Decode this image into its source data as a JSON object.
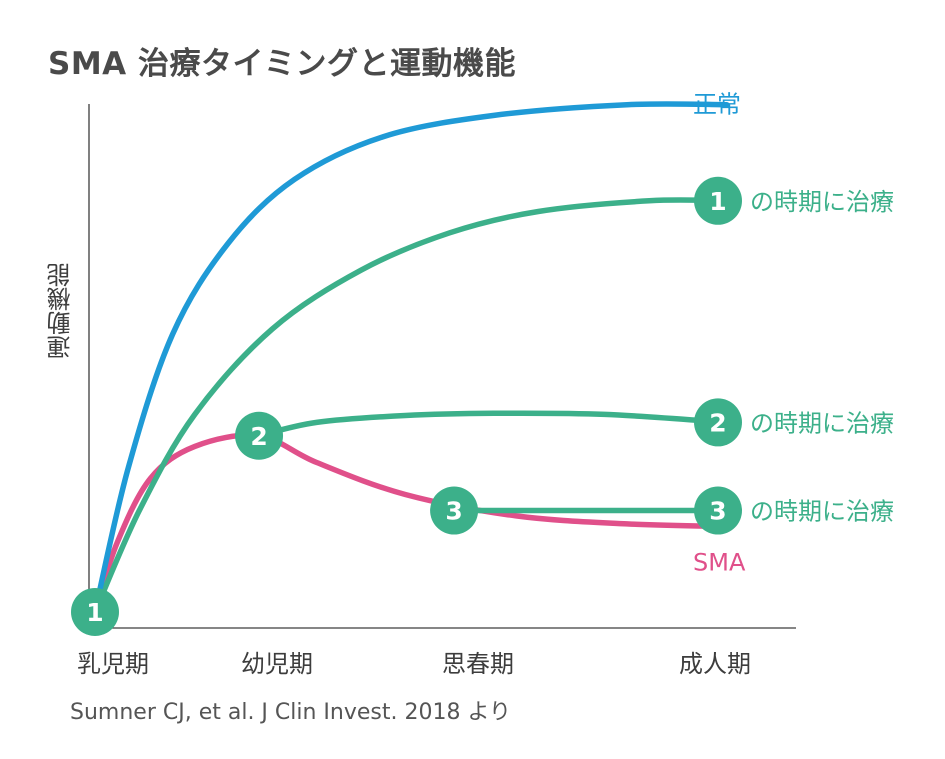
{
  "title": "SMA 治療タイミングと運動機能",
  "ylabel": "運動機能",
  "source": "Sumner CJ, et al. J Clin Invest. 2018 より",
  "colors": {
    "normal": "#1f9ad6",
    "treated": "#3cb08a",
    "sma": "#e0508a",
    "axis": "#3d3d3d",
    "badge_text": "#ffffff"
  },
  "chart_data": {
    "type": "line",
    "title": "SMA 治療タイミングと運動機能",
    "xlabel": "",
    "ylabel": "運動機能",
    "categories": [
      "乳児期",
      "幼児期",
      "思春期",
      "成人期"
    ],
    "xlim": [
      0,
      3.3
    ],
    "ylim": [
      0,
      100
    ],
    "grid": false,
    "markers": [
      {
        "label": "1",
        "x": 0.0,
        "y": 3
      },
      {
        "label": "2",
        "x": 0.74,
        "y": 36
      },
      {
        "label": "3",
        "x": 1.62,
        "y": 22
      }
    ],
    "series": [
      {
        "name": "正常",
        "color_key": "normal",
        "points": [
          [
            0.0,
            3
          ],
          [
            0.15,
            30
          ],
          [
            0.35,
            55
          ],
          [
            0.6,
            72
          ],
          [
            0.9,
            84
          ],
          [
            1.3,
            92
          ],
          [
            1.8,
            96
          ],
          [
            2.4,
            98
          ],
          [
            2.85,
            98
          ]
        ]
      },
      {
        "name": "の時期に治療",
        "marker": "1",
        "color_key": "treated",
        "points": [
          [
            0.0,
            3
          ],
          [
            0.2,
            22
          ],
          [
            0.45,
            40
          ],
          [
            0.8,
            56
          ],
          [
            1.2,
            67
          ],
          [
            1.6,
            74
          ],
          [
            2.0,
            78
          ],
          [
            2.5,
            80
          ],
          [
            2.85,
            80
          ]
        ]
      },
      {
        "name": "の時期に治療",
        "marker": "2",
        "color_key": "treated",
        "points": [
          [
            0.74,
            36
          ],
          [
            1.0,
            38.5
          ],
          [
            1.4,
            39.8
          ],
          [
            1.8,
            40.2
          ],
          [
            2.3,
            40
          ],
          [
            2.85,
            38.5
          ]
        ]
      },
      {
        "name": "の時期に治療",
        "marker": "3",
        "color_key": "treated",
        "points": [
          [
            1.62,
            22
          ],
          [
            2.0,
            22
          ],
          [
            2.5,
            22
          ],
          [
            2.85,
            22
          ]
        ]
      },
      {
        "name": "SMA",
        "color_key": "sma",
        "points": [
          [
            0.0,
            3
          ],
          [
            0.1,
            16
          ],
          [
            0.25,
            28
          ],
          [
            0.45,
            34
          ],
          [
            0.74,
            36
          ],
          [
            1.0,
            31
          ],
          [
            1.4,
            25
          ],
          [
            1.9,
            21
          ],
          [
            2.4,
            19.5
          ],
          [
            2.85,
            19
          ]
        ]
      }
    ]
  }
}
